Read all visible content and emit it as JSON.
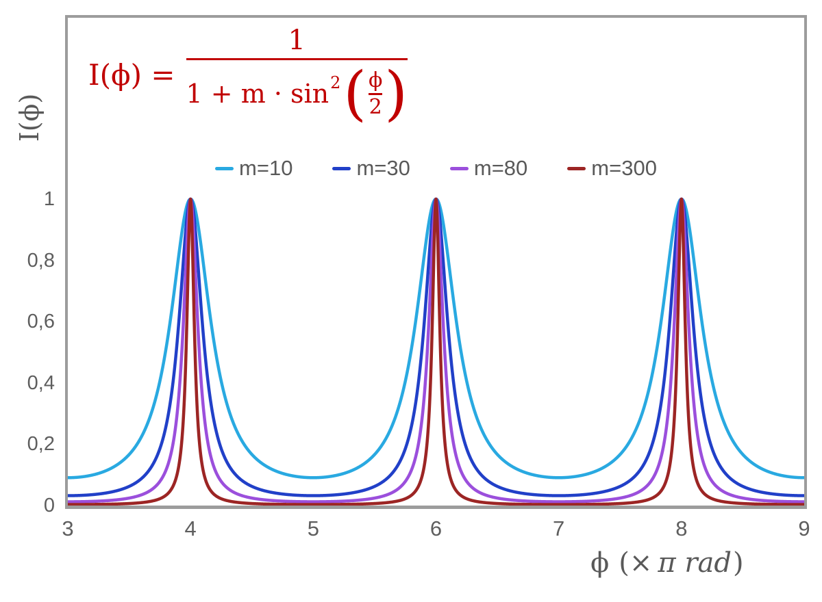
{
  "formula": {
    "lhs": "I(ϕ) =",
    "numerator": "1",
    "denominator_prefix": "1 + m · sin",
    "denominator_power": "2",
    "paren_open": "(",
    "inner_numerator": "ϕ",
    "inner_denominator": "2",
    "paren_close": ")",
    "color": "#C00000"
  },
  "axes": {
    "y_title": "I(ϕ)",
    "x_title_symbol": "ϕ",
    "x_title_unit_pre": "(×",
    "x_title_italic": "π rad",
    "x_title_post": ")",
    "text_color": "#595959",
    "frame_color": "#9C9C9C"
  },
  "chart_data": {
    "type": "line",
    "function": "I(x) = 1 / (1 + m·sin²(π·x/2)), where x = ϕ expressed in units of π rad",
    "grid": false,
    "legend_position": "top-center",
    "x_axis": {
      "label": "ϕ (× π rad)",
      "min": 3,
      "max": 9,
      "ticks": [
        3,
        4,
        5,
        6,
        7,
        8,
        9
      ],
      "tick_labels": [
        "3",
        "4",
        "5",
        "6",
        "7",
        "8",
        "9"
      ]
    },
    "y_axis": {
      "label": "I(ϕ)",
      "min": 0,
      "max": 1.6,
      "ticks": [
        0,
        0.2,
        0.4,
        0.6,
        0.8,
        1
      ],
      "tick_labels": [
        "0",
        "0,2",
        "0,4",
        "0,6",
        "0,8",
        "1"
      ]
    },
    "series": [
      {
        "label": "m=10",
        "m": 10,
        "color": "#29A9E1",
        "peak_value": 1,
        "min_value": 0.091
      },
      {
        "label": "m=30",
        "m": 30,
        "color": "#2140C8",
        "peak_value": 1,
        "min_value": 0.032
      },
      {
        "label": "m=80",
        "m": 80,
        "color": "#9B4FDC",
        "peak_value": 1,
        "min_value": 0.012
      },
      {
        "label": "m=300",
        "m": 300,
        "color": "#9C2524",
        "peak_value": 1,
        "min_value": 0.0033
      }
    ],
    "peaks_at_x": [
      4,
      6,
      8
    ]
  }
}
